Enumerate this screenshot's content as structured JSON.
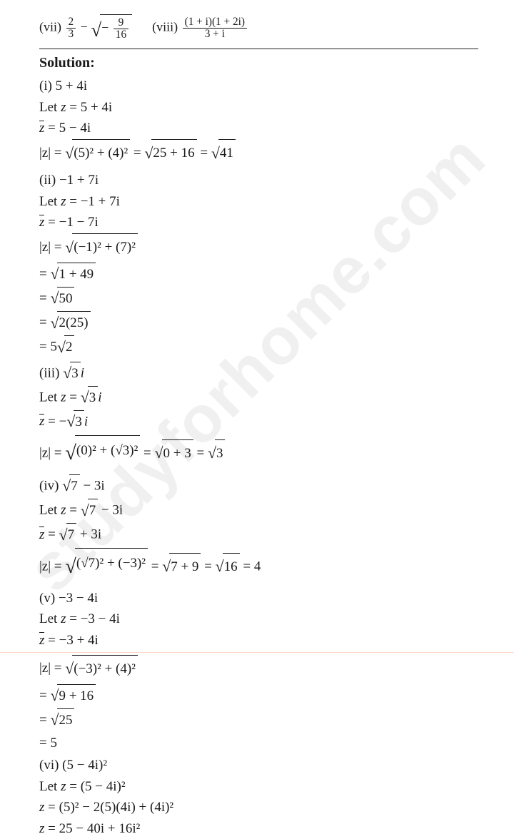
{
  "watermark": "studyforhome.com",
  "problems": {
    "vii": {
      "label": "(vii)",
      "frac_a_num": "2",
      "frac_a_den": "3",
      "minus": " − ",
      "neg_in_sqrt": "−",
      "frac_b_num": "9",
      "frac_b_den": "16"
    },
    "viii": {
      "label": "(viii)",
      "num": "(1 + i)(1 + 2i)",
      "den": "3 + i"
    }
  },
  "heading": "Solution:",
  "s1": {
    "l1": "(i) 5 + 4i",
    "l2a": "Let ",
    "l2b": "z",
    "l2c": " = 5 + 4i",
    "l3a": "z",
    "l3b": " = 5 − 4i",
    "l4a": "|z| = ",
    "l4rad": "(5)² + (4)²",
    "l4b": " = ",
    "l4rad2": "25 + 16",
    "l4c": " = ",
    "l4rad3": "41"
  },
  "s2": {
    "l1": "(ii) −1 + 7i",
    "l2a": "Let ",
    "l2b": "z",
    "l2c": " = −1 + 7i",
    "l3a": "z",
    "l3b": " = −1 − 7i",
    "l4a": "|z| = ",
    "l4rad": "(−1)² + (7)²",
    "l5a": "= ",
    "l5rad": "1 + 49",
    "l6a": "= ",
    "l6rad": "50",
    "l7a": "= ",
    "l7rad": "2(25)",
    "l8a": "= 5",
    "l8rad": "2"
  },
  "s3": {
    "l1a": "(iii) ",
    "l1rad": "3",
    "l1b": "i",
    "l2a": "Let ",
    "l2b": "z",
    "l2c": " = ",
    "l2rad": "3",
    "l2d": "i",
    "l3a": "z",
    "l3b": " = −",
    "l3rad": "3",
    "l3c": "i",
    "l4a": "|z| = ",
    "l4rad": "(0)² + (√3)²",
    "l4b": " = ",
    "l4rad2": "0 + 3",
    "l4c": " = ",
    "l4rad3": "3"
  },
  "s4": {
    "l1a": "(iv) ",
    "l1rad": "7",
    "l1b": " − 3i",
    "l2a": "Let ",
    "l2b": "z",
    "l2c": " = ",
    "l2rad": "7",
    "l2d": " − 3i",
    "l3a": "z",
    "l3b": " = ",
    "l3rad": "7",
    "l3c": " + 3i",
    "l4a": "|z| = ",
    "l4rad": "(√7)² + (−3)²",
    "l4b": " = ",
    "l4rad2": "7 + 9",
    "l4c": " = ",
    "l4rad3": "16",
    "l4d": " = 4"
  },
  "s5": {
    "l1": "(v) −3 − 4i",
    "l2a": "Let ",
    "l2b": "z",
    "l2c": " = −3 − 4i",
    "l3a": "z",
    "l3b": " = −3 + 4i",
    "l4a": "|z| = ",
    "l4rad": "(−3)² + (4)²",
    "l5a": "= ",
    "l5rad": "9 + 16",
    "l6a": "= ",
    "l6rad": "25",
    "l7": "= 5"
  },
  "s6": {
    "l1": "(vi) (5 − 4i)²",
    "l2a": "Let ",
    "l2b": "z",
    "l2c": " = (5 − 4i)²",
    "l3a": "z",
    "l3b": " = (5)² − 2(5)(4i) + (4i)²",
    "l4a": "z",
    "l4b": " = 25 − 40i + 16i²"
  }
}
